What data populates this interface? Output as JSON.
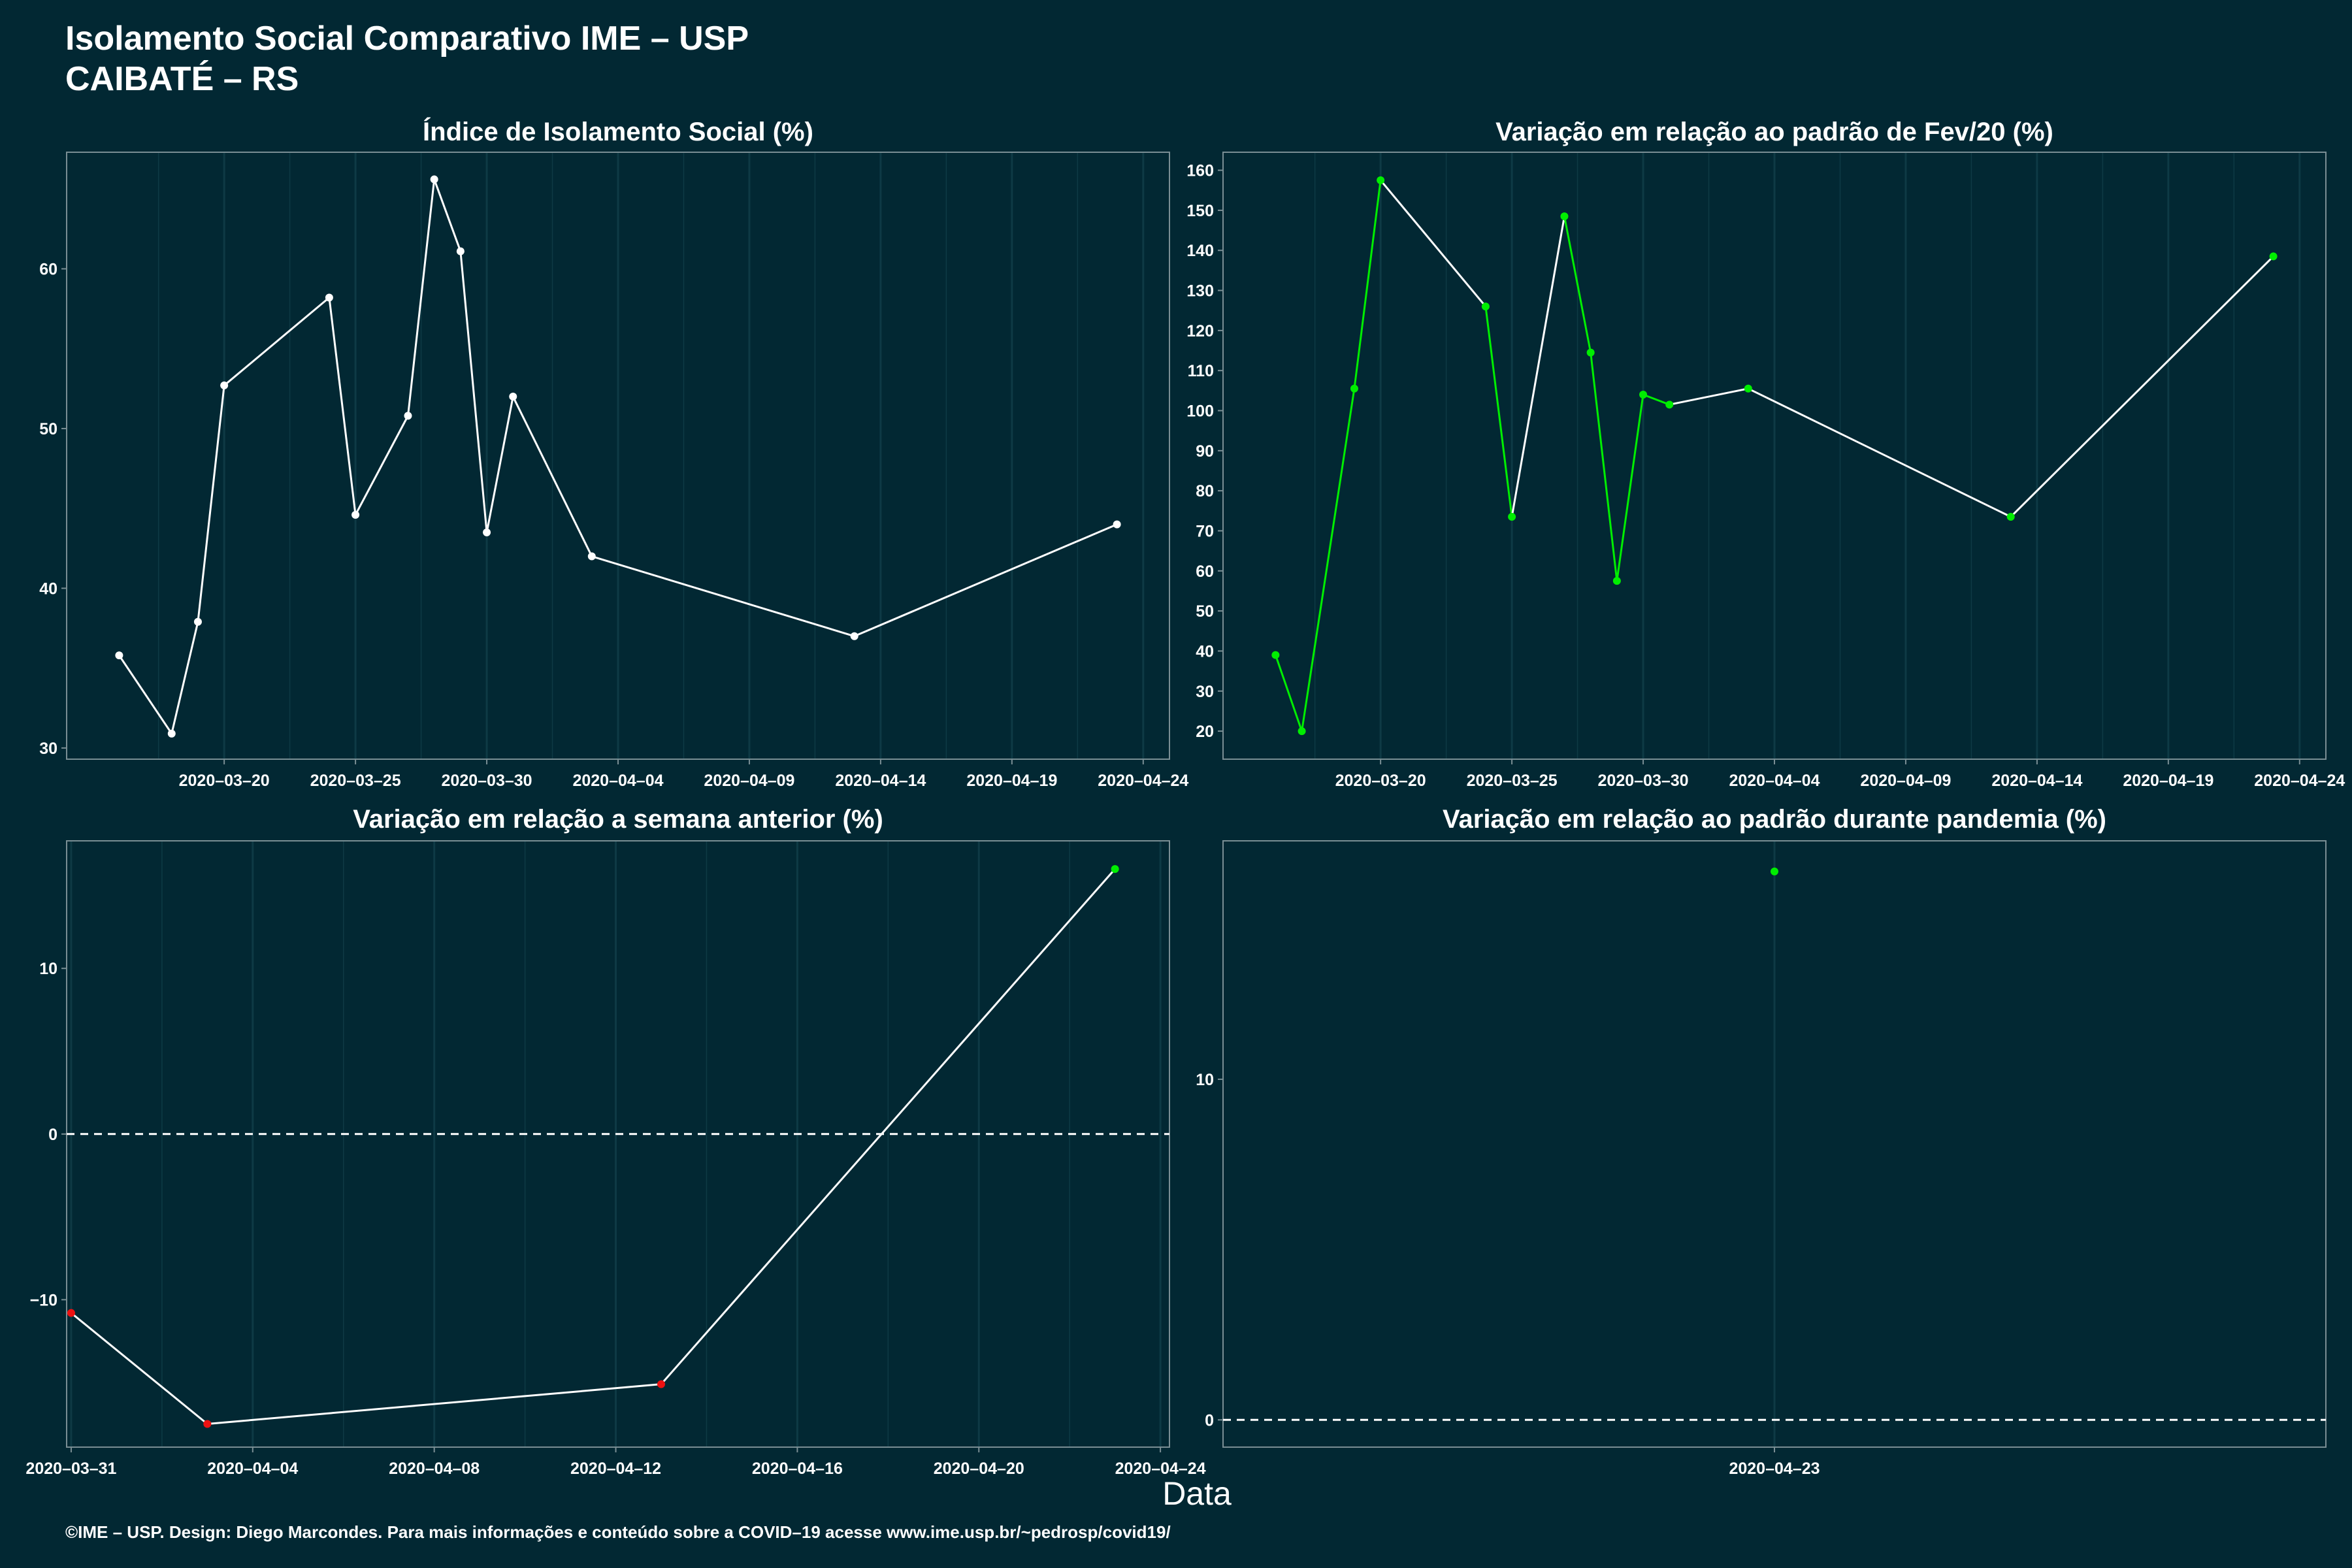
{
  "header": {
    "title_line1": "Isolamento Social Comparativo IME – USP",
    "title_line2": "CAIBATÉ – RS"
  },
  "xaxis_title": "Data",
  "caption": "©IME – USP. Design: Diego Marcondes. Para mais informações e conteúdo sobre a COVID–19 acesse www.ime.usp.br/~pedrosp/covid19/",
  "colors": {
    "background": "#022833",
    "line": "#ffffff",
    "up": "#00ee00",
    "down": "#ee1111",
    "neutral": "#ffffff",
    "grid": "#0e3a45",
    "frame": "#7a8e94"
  },
  "chart_data": [
    {
      "id": "p1",
      "type": "line",
      "title": "Índice de Isolamento Social (%)",
      "x": [
        "2020-03-16",
        "2020-03-18",
        "2020-03-19",
        "2020-03-20",
        "2020-03-24",
        "2020-03-25",
        "2020-03-27",
        "2020-03-28",
        "2020-03-29",
        "2020-03-30",
        "2020-03-31",
        "2020-04-03",
        "2020-04-13",
        "2020-04-23"
      ],
      "y": [
        35.8,
        30.9,
        37.9,
        52.7,
        58.2,
        44.6,
        50.8,
        65.6,
        61.1,
        43.5,
        52.0,
        42.0,
        37.0,
        44.0
      ],
      "point_colors": [
        "neutral",
        "neutral",
        "neutral",
        "neutral",
        "neutral",
        "neutral",
        "neutral",
        "neutral",
        "neutral",
        "neutral",
        "neutral",
        "neutral",
        "neutral",
        "neutral"
      ],
      "xlim": [
        "2020-03-14",
        "2020-04-25"
      ],
      "ylim": [
        29.3,
        67.3
      ],
      "yticks": [
        30,
        40,
        50,
        60
      ],
      "ytick_labels": [
        "30",
        "40",
        "50",
        "60"
      ],
      "xticks": [
        "2020-03-20",
        "2020-03-25",
        "2020-03-30",
        "2020-04-04",
        "2020-04-09",
        "2020-04-14",
        "2020-04-19",
        "2020-04-24"
      ],
      "xtick_labels": [
        "2020–03–20",
        "2020–03–25",
        "2020–03–30",
        "2020–04–04",
        "2020–04–09",
        "2020–04–14",
        "2020–04–19",
        "2020–04–24"
      ],
      "hline": null
    },
    {
      "id": "p2",
      "type": "line",
      "title": "Variação em relação ao padrão de Fev/20 (%)",
      "x": [
        "2020-03-16",
        "2020-03-17",
        "2020-03-19",
        "2020-03-20",
        "2020-03-24",
        "2020-03-25",
        "2020-03-27",
        "2020-03-28",
        "2020-03-29",
        "2020-03-30",
        "2020-03-31",
        "2020-04-03",
        "2020-04-13",
        "2020-04-23"
      ],
      "y": [
        39,
        20,
        105.5,
        157.5,
        126,
        73.5,
        148.5,
        114.5,
        57.5,
        104,
        101.5,
        105.5,
        73.5,
        138.5
      ],
      "point_colors": [
        "up",
        "up",
        "up",
        "up",
        "up",
        "up",
        "up",
        "up",
        "up",
        "up",
        "up",
        "up",
        "up",
        "up"
      ],
      "segment_colors": [
        "up",
        "up",
        "up",
        "neutral",
        "up",
        "neutral",
        "up",
        "up",
        "up",
        "up",
        "neutral",
        "neutral",
        "neutral"
      ],
      "xlim": [
        "2020-03-14",
        "2020-04-25"
      ],
      "ylim": [
        13.0,
        164.5
      ],
      "yticks": [
        20,
        30,
        40,
        50,
        60,
        70,
        80,
        90,
        100,
        110,
        120,
        130,
        140,
        150,
        160
      ],
      "ytick_labels": [
        "20",
        "30",
        "40",
        "50",
        "60",
        "70",
        "80",
        "90",
        "100",
        "110",
        "120",
        "130",
        "140",
        "150",
        "160"
      ],
      "xticks": [
        "2020-03-20",
        "2020-03-25",
        "2020-03-30",
        "2020-04-04",
        "2020-04-09",
        "2020-04-14",
        "2020-04-19",
        "2020-04-24"
      ],
      "xtick_labels": [
        "2020–03–20",
        "2020–03–25",
        "2020–03–30",
        "2020–04–04",
        "2020–04–09",
        "2020–04–14",
        "2020–04–19",
        "2020–04–24"
      ],
      "hline": null
    },
    {
      "id": "p3",
      "type": "line",
      "title": "Variação em relação a semana anterior (%)",
      "x": [
        "2020-03-31",
        "2020-04-03",
        "2020-04-13",
        "2020-04-23"
      ],
      "y": [
        -10.8,
        -17.5,
        -15.1,
        16.0
      ],
      "point_colors": [
        "down",
        "down",
        "down",
        "up"
      ],
      "xlim": [
        "2020-03-30.9",
        "2020-04-24.2"
      ],
      "ylim": [
        -18.9,
        17.7
      ],
      "yticks": [
        -10,
        0,
        10
      ],
      "ytick_labels": [
        "−10",
        "0",
        "10"
      ],
      "xticks": [
        "2020-03-31",
        "2020-04-04",
        "2020-04-08",
        "2020-04-12",
        "2020-04-16",
        "2020-04-20",
        "2020-04-24"
      ],
      "xtick_labels": [
        "2020–03–31",
        "2020–04–04",
        "2020–04–08",
        "2020–04–12",
        "2020–04–16",
        "2020–04–20",
        "2020–04–24"
      ],
      "hline": 0
    },
    {
      "id": "p4",
      "type": "scatter",
      "title": "Variação em relação ao padrão durante pandemia (%)",
      "x": [
        "2020-04-23"
      ],
      "y": [
        16.1
      ],
      "point_colors": [
        "up"
      ],
      "xlim": [
        "2020-04-22",
        "2020-04-24"
      ],
      "ylim": [
        -0.8,
        17.0
      ],
      "yticks": [
        0,
        10
      ],
      "ytick_labels": [
        "0",
        "10"
      ],
      "xticks": [
        "2020-04-23"
      ],
      "xtick_labels": [
        "2020–04–23"
      ],
      "hline": 0
    }
  ]
}
